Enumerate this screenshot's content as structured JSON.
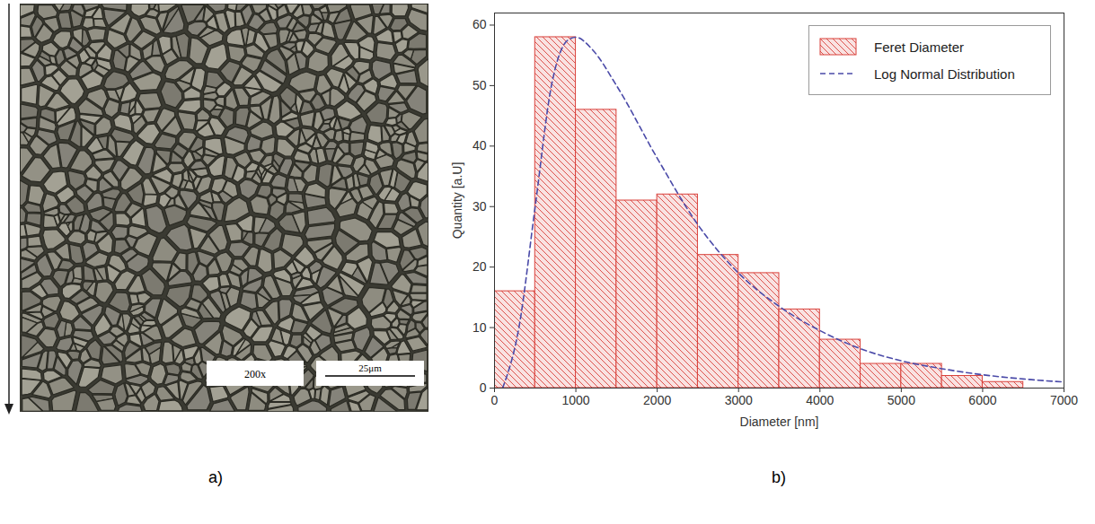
{
  "image_panel": {
    "label": "a)",
    "magnification": "200x",
    "scale_bar": "25μm"
  },
  "chart_data": {
    "type": "histogram",
    "panel_label": "b)",
    "xlabel": "Diameter [nm]",
    "ylabel": "Quantity [a.U]",
    "bins": [
      0,
      500,
      1000,
      1500,
      2000,
      2500,
      3000,
      3500,
      4000,
      4500,
      5000,
      5500,
      6000,
      6500
    ],
    "series": [
      {
        "name": "Feret Diameter",
        "type": "bar",
        "color": "#d9403a",
        "values": [
          16,
          58,
          46,
          31,
          32,
          22,
          19,
          13,
          8,
          4,
          4,
          2,
          1
        ]
      },
      {
        "name": "Log Normal Distribution",
        "type": "line",
        "line_style": "dashed",
        "color": "#4a4aa8",
        "x": [
          100,
          300,
          500,
          700,
          900,
          1000,
          1200,
          1500,
          2000,
          2500,
          3000,
          3500,
          4000,
          4500,
          5000,
          5500,
          6000,
          6500,
          7000
        ],
        "values": [
          0,
          10,
          30,
          50,
          57.5,
          58,
          56,
          50,
          38,
          27,
          19,
          13.5,
          9.5,
          6.5,
          4.5,
          3.2,
          2.2,
          1.5,
          1
        ]
      }
    ],
    "xlim": [
      0,
      7000
    ],
    "xticks": [
      0,
      1000,
      2000,
      3000,
      4000,
      5000,
      6000,
      7000
    ],
    "ylim": [
      0,
      62
    ],
    "yticks": [
      0,
      10,
      20,
      30,
      40,
      50,
      60
    ],
    "grid": false,
    "legend": "upper right"
  }
}
